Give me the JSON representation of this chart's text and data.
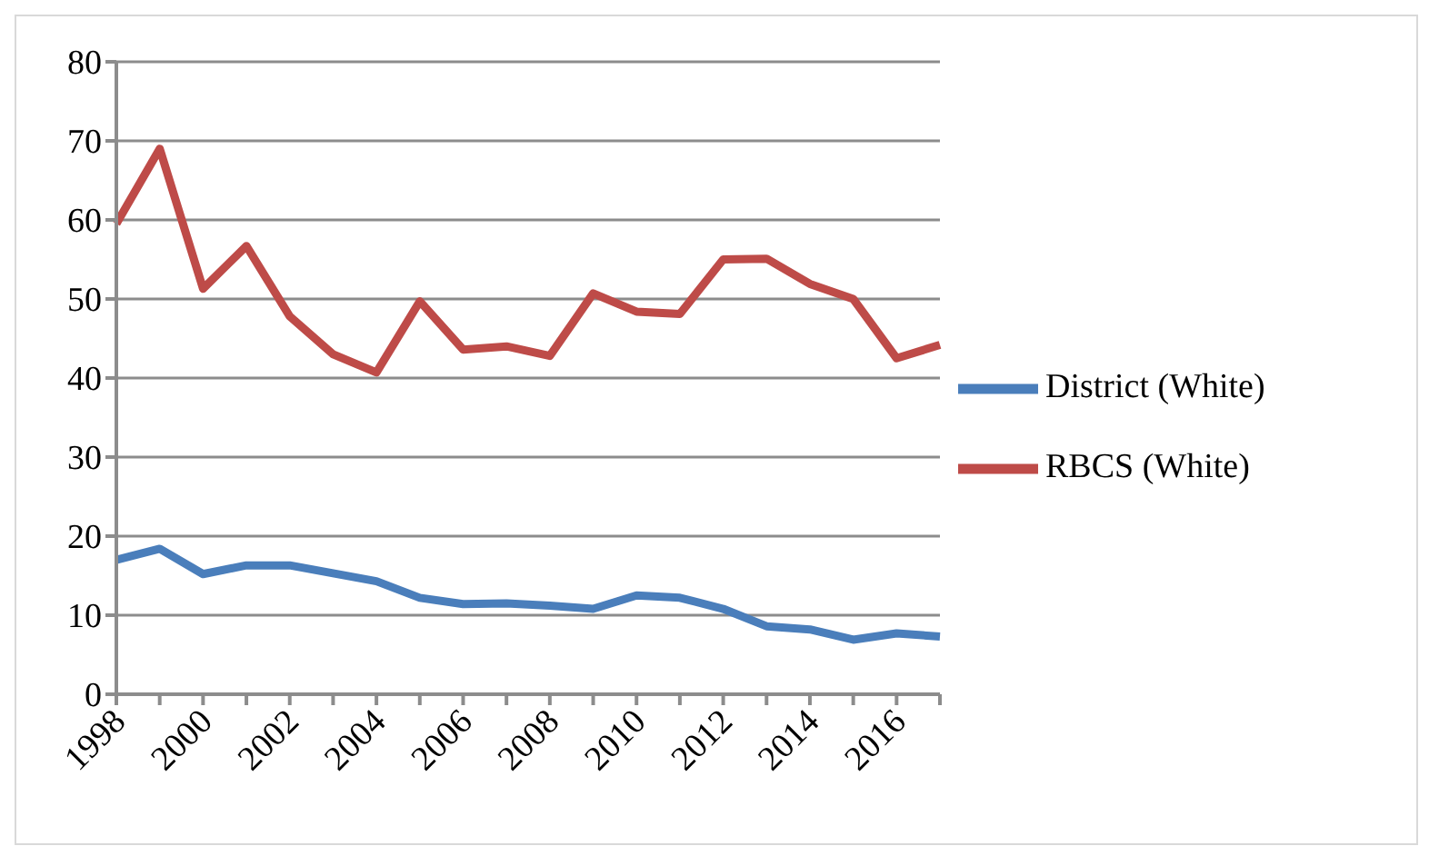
{
  "chart_data": {
    "type": "line",
    "categories": [
      "1998",
      null,
      "2000",
      null,
      "2002",
      null,
      "2004",
      null,
      "2006",
      null,
      "2008",
      null,
      "2010",
      null,
      "2012",
      null,
      "2014",
      null,
      "2016",
      null
    ],
    "series": [
      {
        "name": "District (White)",
        "color": "#4a7ebb",
        "values": [
          17,
          18.4,
          15.2,
          16.3,
          16.3,
          15.3,
          14.3,
          12.2,
          11.4,
          11.5,
          11.2,
          10.8,
          12.5,
          12.2,
          10.8,
          8.6,
          8.2,
          6.9,
          7.7,
          7.3
        ]
      },
      {
        "name": "RBCS (White)",
        "color": "#be4b48",
        "values": [
          59.5,
          69,
          51.3,
          56.7,
          47.8,
          43,
          40.7,
          49.7,
          43.6,
          44,
          42.8,
          50.7,
          48.4,
          48.1,
          55,
          55.1,
          51.9,
          50,
          42.5,
          44.2
        ]
      }
    ],
    "ylim": [
      0,
      80
    ],
    "yticks": [
      0,
      10,
      20,
      30,
      40,
      50,
      60,
      70,
      80
    ],
    "grid": "y",
    "legend": "right",
    "marker": "none",
    "line_style": "solid"
  }
}
